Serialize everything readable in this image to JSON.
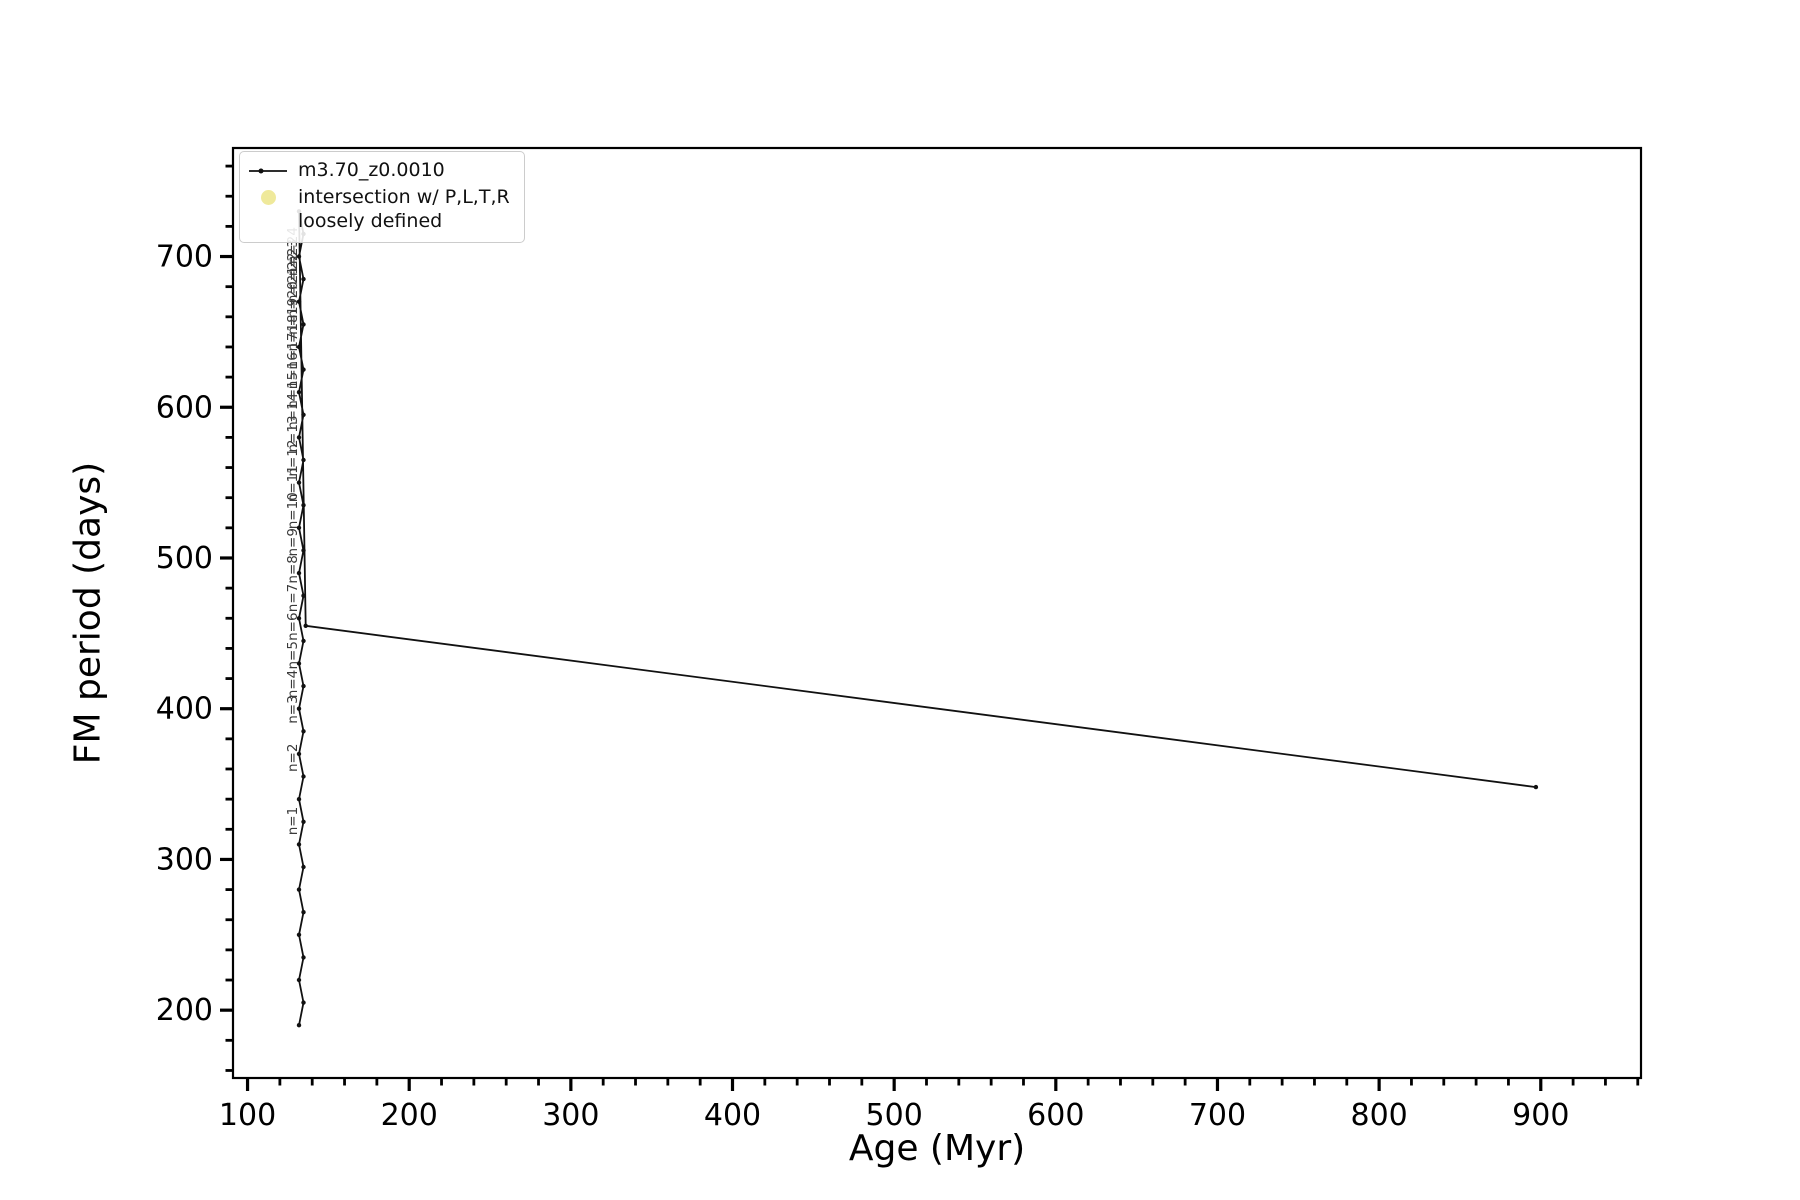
{
  "chart_data": {
    "type": "line",
    "title": "",
    "xlabel": "Age (Myr)",
    "ylabel": "FM period (days)",
    "xlim": [
      91,
      962
    ],
    "ylim": [
      155,
      772
    ],
    "x_major_ticks": [
      100,
      200,
      300,
      400,
      500,
      600,
      700,
      800,
      900
    ],
    "y_major_ticks": [
      200,
      300,
      400,
      500,
      600,
      700
    ],
    "x_minor_step": 20,
    "y_minor_step": 20,
    "grid": false,
    "series": [
      {
        "name": "m3.70_z0.0010",
        "color": "#111111",
        "marker": "dot",
        "points": [
          [
            131.8,
            190
          ],
          [
            134.6,
            205
          ],
          [
            131.8,
            220
          ],
          [
            134.6,
            235
          ],
          [
            131.8,
            250
          ],
          [
            134.6,
            265
          ],
          [
            131.8,
            280
          ],
          [
            134.6,
            295
          ],
          [
            131.8,
            310
          ],
          [
            134.6,
            325
          ],
          [
            131.8,
            340
          ],
          [
            134.6,
            355
          ],
          [
            131.8,
            370
          ],
          [
            134.6,
            385
          ],
          [
            131.8,
            400
          ],
          [
            134.6,
            415
          ],
          [
            131.8,
            430
          ],
          [
            134.6,
            445
          ],
          [
            131.8,
            460
          ],
          [
            134.6,
            475
          ],
          [
            131.8,
            490
          ],
          [
            134.6,
            505
          ],
          [
            131.8,
            520
          ],
          [
            134.6,
            535
          ],
          [
            131.8,
            550
          ],
          [
            134.6,
            565
          ],
          [
            131.8,
            580
          ],
          [
            134.6,
            595
          ],
          [
            131.8,
            610
          ],
          [
            134.6,
            625
          ],
          [
            131.8,
            640
          ],
          [
            134.6,
            655
          ],
          [
            131.8,
            670
          ],
          [
            134.6,
            685
          ],
          [
            131.8,
            700
          ],
          [
            134.6,
            715
          ],
          [
            131.8,
            730
          ],
          [
            136.0,
            455
          ],
          [
            897,
            348
          ]
        ]
      }
    ],
    "legend": {
      "position": "upper-left",
      "entries": [
        {
          "type": "line-dot",
          "label": "m3.70_z0.0010",
          "color": "#111111"
        },
        {
          "type": "marker",
          "label_lines": [
            "intersection w/ P,L,T,R",
            "loosely defined"
          ],
          "color": "#ebe382"
        }
      ]
    },
    "annotation_age": 130.6,
    "annotation_color": "#3a3a3a",
    "annotations": [
      {
        "label": "n=1",
        "period": 316
      },
      {
        "label": "n=2",
        "period": 358
      },
      {
        "label": "n=3",
        "period": 390
      },
      {
        "label": "n=4",
        "period": 407
      },
      {
        "label": "n=5",
        "period": 426
      },
      {
        "label": "n=6",
        "period": 445
      },
      {
        "label": "n=7",
        "period": 464
      },
      {
        "label": "n=8",
        "period": 483
      },
      {
        "label": "n=9",
        "period": 501
      },
      {
        "label": "n=10",
        "period": 519
      },
      {
        "label": "n=11",
        "period": 537
      },
      {
        "label": "n=12",
        "period": 554
      },
      {
        "label": "n=13",
        "period": 570
      },
      {
        "label": "n=14",
        "period": 585
      },
      {
        "label": "n=15",
        "period": 599
      },
      {
        "label": "n=16",
        "period": 612
      },
      {
        "label": "n=17",
        "period": 625
      },
      {
        "label": "n=18",
        "period": 637
      },
      {
        "label": "n=19",
        "period": 648
      },
      {
        "label": "n=20",
        "period": 659
      },
      {
        "label": "n=21",
        "period": 669
      },
      {
        "label": "n=22",
        "period": 678
      },
      {
        "label": "n=23",
        "period": 687
      },
      {
        "label": "n=24",
        "period": 695
      }
    ]
  }
}
